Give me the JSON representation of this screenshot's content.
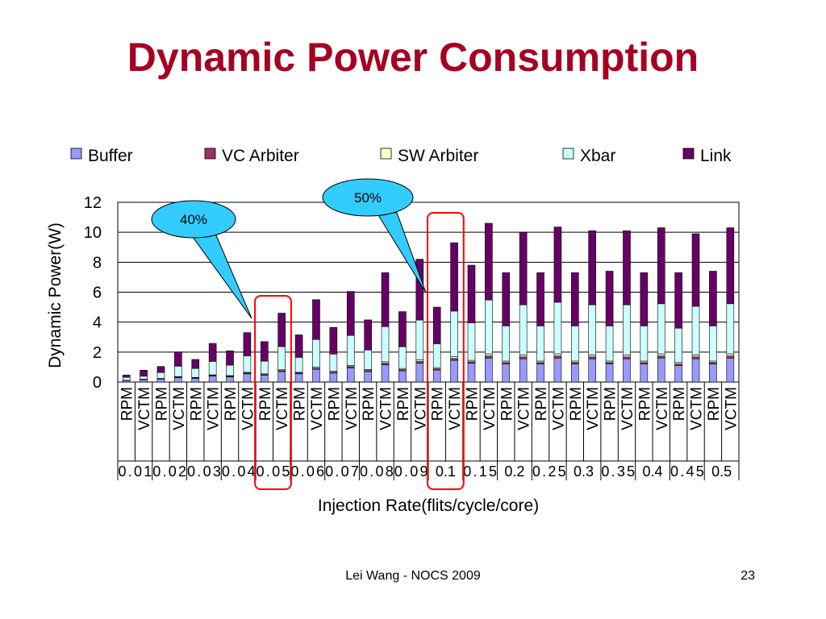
{
  "slide": {
    "title": "Dynamic Power Consumption",
    "footer": "Lei Wang - NOCS 2009",
    "page_number": "23"
  },
  "colors": {
    "title": "#a50021",
    "Buffer": "#9999ff",
    "VC Arbiter": "#993366",
    "SW Arbiter": "#ffffcc",
    "Xbar": "#ccffff",
    "Link": "#660066",
    "callout_fill": "#33ccff",
    "highlight_box": "#ff0000"
  },
  "chart_data": {
    "type": "bar",
    "stacked": true,
    "ylabel": "Dynamic Power(W)",
    "xlabel": "Injection Rate(flits/cycle/core)",
    "ylim": [
      0,
      12
    ],
    "yticks": [
      "0",
      "2",
      "4",
      "6",
      "8",
      "10",
      "12"
    ],
    "grid": true,
    "legend_position": "top",
    "injection_rates": [
      "0.01",
      "0.02",
      "0.03",
      "0.04",
      "0.05",
      "0.06",
      "0.07",
      "0.08",
      "0.09",
      "0.1",
      "0.15",
      "0.2",
      "0.25",
      "0.3",
      "0.35",
      "0.4",
      "0.45",
      "0.5"
    ],
    "bar_labels": [
      "RPM",
      "VCTM"
    ],
    "series_names": [
      "Buffer",
      "VC Arbiter",
      "SW Arbiter",
      "Xbar",
      "Link"
    ],
    "bars": [
      {
        "rate": "0.01",
        "design": "RPM",
        "values": [
          0.1,
          0.01,
          0.01,
          0.2,
          0.15
        ]
      },
      {
        "rate": "0.01",
        "design": "VCTM",
        "values": [
          0.15,
          0.02,
          0.02,
          0.2,
          0.4
        ]
      },
      {
        "rate": "0.02",
        "design": "RPM",
        "values": [
          0.2,
          0.02,
          0.02,
          0.4,
          0.4
        ]
      },
      {
        "rate": "0.02",
        "design": "VCTM",
        "values": [
          0.3,
          0.03,
          0.03,
          0.7,
          0.95
        ]
      },
      {
        "rate": "0.03",
        "design": "RPM",
        "values": [
          0.25,
          0.03,
          0.03,
          0.6,
          0.6
        ]
      },
      {
        "rate": "0.03",
        "design": "VCTM",
        "values": [
          0.4,
          0.04,
          0.04,
          0.9,
          1.2
        ]
      },
      {
        "rate": "0.04",
        "design": "RPM",
        "values": [
          0.35,
          0.04,
          0.04,
          0.7,
          0.95
        ]
      },
      {
        "rate": "0.04",
        "design": "VCTM",
        "values": [
          0.55,
          0.05,
          0.05,
          1.1,
          1.55
        ]
      },
      {
        "rate": "0.05",
        "design": "RPM",
        "values": [
          0.45,
          0.05,
          0.05,
          0.85,
          1.3
        ]
      },
      {
        "rate": "0.05",
        "design": "VCTM",
        "values": [
          0.7,
          0.06,
          0.06,
          1.55,
          2.23
        ]
      },
      {
        "rate": "0.06",
        "design": "RPM",
        "values": [
          0.55,
          0.05,
          0.05,
          1.0,
          1.5
        ]
      },
      {
        "rate": "0.06",
        "design": "VCTM",
        "values": [
          0.85,
          0.07,
          0.07,
          1.85,
          2.66
        ]
      },
      {
        "rate": "0.07",
        "design": "RPM",
        "values": [
          0.6,
          0.06,
          0.06,
          1.15,
          1.78
        ]
      },
      {
        "rate": "0.07",
        "design": "VCTM",
        "values": [
          0.95,
          0.08,
          0.08,
          2.0,
          2.94
        ]
      },
      {
        "rate": "0.08",
        "design": "RPM",
        "values": [
          0.7,
          0.07,
          0.07,
          1.3,
          2.01
        ]
      },
      {
        "rate": "0.08",
        "design": "VCTM",
        "values": [
          1.15,
          0.1,
          0.1,
          2.35,
          3.6
        ]
      },
      {
        "rate": "0.09",
        "design": "RPM",
        "values": [
          0.75,
          0.08,
          0.08,
          1.45,
          2.34
        ]
      },
      {
        "rate": "0.09",
        "design": "VCTM",
        "values": [
          1.25,
          0.12,
          0.12,
          2.65,
          4.06
        ]
      },
      {
        "rate": "0.1",
        "design": "RPM",
        "values": [
          0.8,
          0.08,
          0.08,
          1.6,
          2.44
        ]
      },
      {
        "rate": "0.1",
        "design": "VCTM",
        "values": [
          1.45,
          0.12,
          0.12,
          3.05,
          4.56
        ]
      },
      {
        "rate": "0.15",
        "design": "RPM",
        "values": [
          1.25,
          0.1,
          0.1,
          2.5,
          3.85
        ]
      },
      {
        "rate": "0.15",
        "design": "VCTM",
        "values": [
          1.6,
          0.14,
          0.14,
          3.6,
          5.12
        ]
      },
      {
        "rate": "0.2",
        "design": "RPM",
        "values": [
          1.2,
          0.1,
          0.1,
          2.35,
          3.55
        ]
      },
      {
        "rate": "0.2",
        "design": "VCTM",
        "values": [
          1.55,
          0.13,
          0.13,
          3.35,
          4.84
        ]
      },
      {
        "rate": "0.25",
        "design": "RPM",
        "values": [
          1.2,
          0.1,
          0.1,
          2.35,
          3.55
        ]
      },
      {
        "rate": "0.25",
        "design": "VCTM",
        "values": [
          1.6,
          0.14,
          0.14,
          3.45,
          5.02
        ]
      },
      {
        "rate": "0.3",
        "design": "RPM",
        "values": [
          1.2,
          0.1,
          0.1,
          2.35,
          3.55
        ]
      },
      {
        "rate": "0.3",
        "design": "VCTM",
        "values": [
          1.55,
          0.13,
          0.13,
          3.35,
          4.94
        ]
      },
      {
        "rate": "0.35",
        "design": "RPM",
        "values": [
          1.2,
          0.1,
          0.1,
          2.35,
          3.65
        ]
      },
      {
        "rate": "0.35",
        "design": "VCTM",
        "values": [
          1.55,
          0.13,
          0.13,
          3.35,
          4.94
        ]
      },
      {
        "rate": "0.4",
        "design": "RPM",
        "values": [
          1.2,
          0.1,
          0.1,
          2.35,
          3.55
        ]
      },
      {
        "rate": "0.4",
        "design": "VCTM",
        "values": [
          1.6,
          0.14,
          0.14,
          3.35,
          5.07
        ]
      },
      {
        "rate": "0.45",
        "design": "RPM",
        "values": [
          1.1,
          0.1,
          0.1,
          2.3,
          3.7
        ]
      },
      {
        "rate": "0.45",
        "design": "VCTM",
        "values": [
          1.55,
          0.13,
          0.13,
          3.25,
          4.84
        ]
      },
      {
        "rate": "0.5",
        "design": "RPM",
        "values": [
          1.2,
          0.1,
          0.1,
          2.35,
          3.65
        ]
      },
      {
        "rate": "0.5",
        "design": "VCTM",
        "values": [
          1.6,
          0.14,
          0.14,
          3.35,
          5.07
        ]
      }
    ],
    "annotations": [
      {
        "text": "40%",
        "highlights_rate": "0.05"
      },
      {
        "text": "50%",
        "highlights_rate": "0.1"
      }
    ]
  }
}
